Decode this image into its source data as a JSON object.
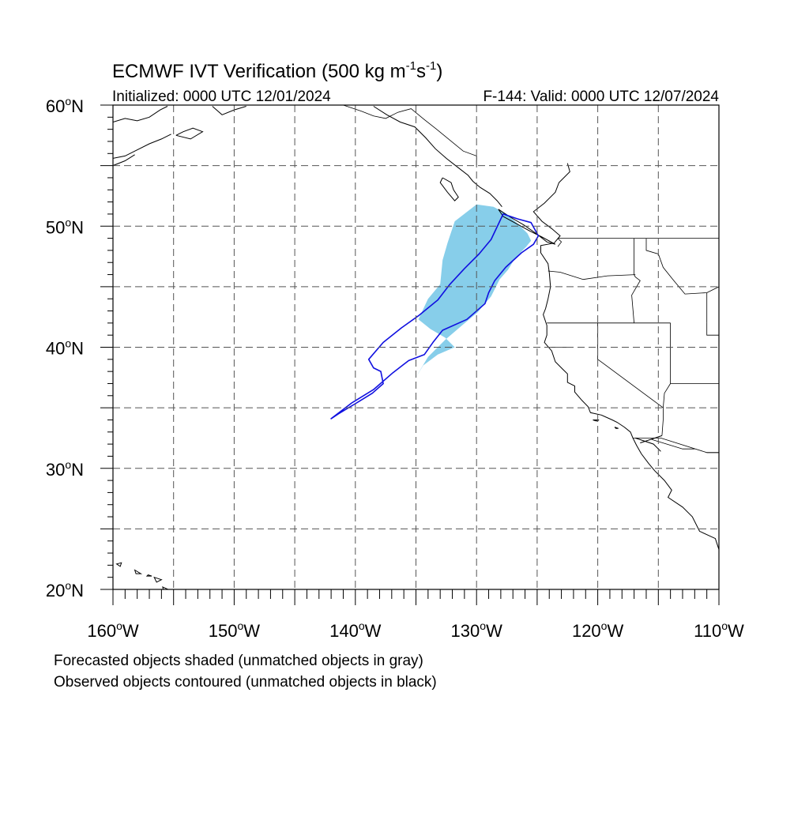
{
  "title": {
    "main": "ECMWF IVT Verification (500 kg m",
    "exp1": "-1",
    "mid": "s",
    "exp2": "-1",
    "close": ")"
  },
  "subtitle_left": "Initialized: 0000 UTC 12/01/2024",
  "subtitle_right": "F-144: Valid: 0000 UTC 12/07/2024",
  "lat_labels": [
    "60",
    "50",
    "40",
    "30",
    "20"
  ],
  "lon_labels": [
    "160",
    "150",
    "140",
    "130",
    "120",
    "110"
  ],
  "lat_hemisphere": "N",
  "lon_hemisphere": "W",
  "degree_symbol": "o",
  "footnote_1": "Forecasted objects shaded (unmatched objects in gray)",
  "footnote_2": "Observed objects contoured (unmatched objects in black)",
  "colors": {
    "forecast_fill": "#87ceea",
    "observed_contour": "#1010e0",
    "coastline": "#000000",
    "grid": "#555555"
  },
  "map_extent": {
    "lon_min": -160,
    "lon_max": -110,
    "lat_min": 20,
    "lat_max": 60
  },
  "gridlines": {
    "lon": [
      -155,
      -150,
      -145,
      -140,
      -135,
      -130,
      -125,
      -120,
      -115
    ],
    "lat": [
      25,
      30,
      35,
      40,
      45,
      50,
      55
    ],
    "style": "dashed"
  },
  "forecast_object": [
    [
      -130.0,
      51.8
    ],
    [
      -128.6,
      51.6
    ],
    [
      -127.5,
      51.0
    ],
    [
      -126.6,
      50.2
    ],
    [
      -125.8,
      49.4
    ],
    [
      -125.5,
      48.8
    ],
    [
      -125.9,
      48.3
    ],
    [
      -126.8,
      47.4
    ],
    [
      -127.4,
      46.4
    ],
    [
      -128.1,
      45.6
    ],
    [
      -128.8,
      44.2
    ],
    [
      -129.9,
      42.9
    ],
    [
      -131.2,
      41.8
    ],
    [
      -132.6,
      40.6
    ],
    [
      -134.0,
      39.2
    ],
    [
      -135.2,
      37.2
    ],
    [
      -134.4,
      38.5
    ],
    [
      -133.2,
      39.4
    ],
    [
      -131.8,
      40.0
    ],
    [
      -132.6,
      40.8
    ],
    [
      -133.8,
      41.5
    ],
    [
      -134.8,
      42.3
    ],
    [
      -134.0,
      44.0
    ],
    [
      -133.0,
      45.2
    ],
    [
      -132.8,
      47.2
    ],
    [
      -132.4,
      48.6
    ],
    [
      -131.8,
      50.4
    ]
  ],
  "observed_object": [
    [
      -127.8,
      51.0
    ],
    [
      -126.6,
      50.6
    ],
    [
      -125.5,
      50.3
    ],
    [
      -124.9,
      49.2
    ],
    [
      -125.3,
      48.5
    ],
    [
      -126.3,
      47.8
    ],
    [
      -127.6,
      46.6
    ],
    [
      -128.5,
      45.5
    ],
    [
      -129.0,
      44.5
    ],
    [
      -129.3,
      43.6
    ],
    [
      -130.8,
      42.3
    ],
    [
      -132.8,
      41.4
    ],
    [
      -133.6,
      40.4
    ],
    [
      -134.3,
      39.4
    ],
    [
      -135.6,
      38.9
    ],
    [
      -136.9,
      37.9
    ],
    [
      -138.5,
      36.5
    ],
    [
      -140.3,
      35.4
    ],
    [
      -142.0,
      34.1
    ],
    [
      -141.4,
      34.5
    ],
    [
      -139.9,
      35.4
    ],
    [
      -138.6,
      36.2
    ],
    [
      -137.7,
      37.0
    ],
    [
      -137.9,
      38.0
    ],
    [
      -138.5,
      38.3
    ],
    [
      -138.9,
      39.0
    ],
    [
      -137.7,
      40.4
    ],
    [
      -136.2,
      41.6
    ],
    [
      -134.8,
      42.6
    ],
    [
      -133.2,
      43.9
    ],
    [
      -132.2,
      45.2
    ],
    [
      -131.0,
      46.5
    ],
    [
      -129.8,
      47.7
    ],
    [
      -128.8,
      48.9
    ]
  ],
  "coastlines": [
    [
      [
        -122.5,
        55.2
      ],
      [
        -122.3,
        54.5
      ],
      [
        -123.2,
        53.6
      ],
      [
        -123.5,
        52.8
      ],
      [
        -124.4,
        51.9
      ],
      [
        -125.3,
        51.2
      ],
      [
        -124.6,
        50.4
      ],
      [
        -123.8,
        49.8
      ],
      [
        -123.1,
        49.2
      ],
      [
        -123.6,
        48.6
      ],
      [
        -124.7,
        48.4
      ],
      [
        -124.7,
        47.8
      ],
      [
        -124.1,
        46.9
      ],
      [
        -124.0,
        46.2
      ],
      [
        -123.9,
        45.0
      ],
      [
        -124.1,
        44.0
      ],
      [
        -124.3,
        43.2
      ],
      [
        -124.5,
        42.7
      ],
      [
        -124.2,
        41.8
      ],
      [
        -124.2,
        41.0
      ],
      [
        -124.4,
        40.4
      ],
      [
        -123.8,
        39.7
      ],
      [
        -123.5,
        38.8
      ],
      [
        -122.9,
        38.2
      ],
      [
        -122.5,
        37.8
      ],
      [
        -122.5,
        37.1
      ],
      [
        -121.9,
        36.8
      ],
      [
        -121.9,
        36.3
      ],
      [
        -121.3,
        35.6
      ],
      [
        -120.8,
        35.1
      ],
      [
        -120.6,
        34.6
      ],
      [
        -119.7,
        34.4
      ],
      [
        -118.8,
        34.0
      ],
      [
        -118.4,
        33.8
      ],
      [
        -117.8,
        33.4
      ],
      [
        -117.3,
        33.0
      ],
      [
        -117.1,
        32.5
      ],
      [
        -116.8,
        31.9
      ],
      [
        -116.4,
        31.2
      ],
      [
        -115.8,
        30.4
      ],
      [
        -115.3,
        29.8
      ],
      [
        -114.5,
        29.0
      ],
      [
        -113.9,
        28.2
      ],
      [
        -114.2,
        27.6
      ],
      [
        -113.0,
        26.8
      ],
      [
        -112.2,
        26.0
      ],
      [
        -111.6,
        24.8
      ],
      [
        -110.3,
        24.2
      ],
      [
        -109.9,
        23.0
      ]
    ],
    [
      [
        -128.2,
        51.4
      ],
      [
        -127.3,
        50.8
      ],
      [
        -126.1,
        50.1
      ],
      [
        -125.1,
        49.4
      ],
      [
        -124.2,
        48.7
      ],
      [
        -123.5,
        48.5
      ],
      [
        -124.6,
        49.1
      ],
      [
        -125.6,
        49.6
      ],
      [
        -126.7,
        50.2
      ],
      [
        -127.8,
        50.8
      ],
      [
        -128.2,
        51.4
      ]
    ],
    [
      [
        -138.5,
        59.9
      ],
      [
        -137.4,
        59.2
      ],
      [
        -136.3,
        58.6
      ],
      [
        -135.1,
        58.2
      ],
      [
        -134.2,
        57.3
      ],
      [
        -133.4,
        56.4
      ],
      [
        -132.5,
        55.6
      ],
      [
        -131.6,
        54.9
      ],
      [
        -130.7,
        54.2
      ],
      [
        -130.3,
        53.7
      ],
      [
        -129.7,
        53.2
      ],
      [
        -128.9,
        52.7
      ],
      [
        -128.3,
        52.1
      ],
      [
        -127.9,
        51.6
      ]
    ],
    [
      [
        -132.8,
        54.0
      ],
      [
        -132.1,
        53.6
      ],
      [
        -131.9,
        53.0
      ],
      [
        -131.5,
        52.4
      ],
      [
        -131.8,
        52.1
      ],
      [
        -132.4,
        52.8
      ],
      [
        -133.0,
        53.6
      ],
      [
        -132.8,
        54.0
      ]
    ],
    [
      [
        -160.0,
        58.6
      ],
      [
        -159.0,
        58.9
      ],
      [
        -158.0,
        58.7
      ],
      [
        -157.0,
        59.0
      ],
      [
        -156.1,
        59.6
      ],
      [
        -155.5,
        59.9
      ]
    ],
    [
      [
        -160.0,
        55.6
      ],
      [
        -159.0,
        55.8
      ],
      [
        -158.0,
        56.3
      ],
      [
        -157.0,
        56.8
      ],
      [
        -156.0,
        57.2
      ],
      [
        -155.2,
        57.6
      ]
    ],
    [
      [
        -160.0,
        55.0
      ],
      [
        -159.0,
        55.4
      ],
      [
        -158.2,
        55.9
      ]
    ],
    [
      [
        -154.8,
        57.5
      ],
      [
        -153.6,
        57.2
      ],
      [
        -152.6,
        57.8
      ],
      [
        -153.4,
        58.1
      ],
      [
        -154.2,
        57.8
      ],
      [
        -154.8,
        57.5
      ]
    ],
    [
      [
        -151.8,
        59.9
      ],
      [
        -151.0,
        59.2
      ],
      [
        -150.0,
        59.6
      ],
      [
        -149.0,
        59.9
      ]
    ],
    [
      [
        -116.9,
        32.5
      ],
      [
        -115.4,
        32.0
      ],
      [
        -114.8,
        31.4
      ]
    ],
    [
      [
        -116.5,
        32.1
      ],
      [
        -115.6,
        32.4
      ],
      [
        -114.7,
        32.7
      ]
    ]
  ],
  "islands": [
    [
      [
        -159.7,
        22.1
      ],
      [
        -159.3,
        22.2
      ],
      [
        -159.4,
        21.9
      ],
      [
        -159.7,
        22.1
      ]
    ],
    [
      [
        -158.2,
        21.6
      ],
      [
        -157.7,
        21.3
      ],
      [
        -158.1,
        21.3
      ],
      [
        -158.2,
        21.6
      ]
    ],
    [
      [
        -157.1,
        21.2
      ],
      [
        -156.8,
        21.1
      ],
      [
        -157.2,
        21.1
      ],
      [
        -157.1,
        21.2
      ]
    ],
    [
      [
        -156.6,
        21.0
      ],
      [
        -156.0,
        20.8
      ],
      [
        -156.4,
        20.6
      ],
      [
        -156.6,
        21.0
      ]
    ],
    [
      [
        -155.9,
        20.2
      ],
      [
        -155.0,
        19.8
      ],
      [
        -155.6,
        19.0
      ],
      [
        -155.9,
        20.2
      ]
    ],
    [
      [
        -120.4,
        34.0
      ],
      [
        -119.9,
        34.0
      ],
      [
        -120.1,
        33.9
      ],
      [
        -120.4,
        34.0
      ]
    ],
    [
      [
        -118.6,
        33.4
      ],
      [
        -118.3,
        33.3
      ],
      [
        -118.5,
        33.3
      ],
      [
        -118.6,
        33.4
      ]
    ]
  ],
  "borders": [
    [
      [
        -123.3,
        49.0
      ],
      [
        -110.0,
        49.0
      ]
    ],
    [
      [
        -141.0,
        60.0
      ],
      [
        -139.5,
        59.5
      ],
      [
        -138.5,
        59.1
      ],
      [
        -137.5,
        58.9
      ],
      [
        -136.5,
        59.4
      ],
      [
        -135.4,
        59.7
      ],
      [
        -134.3,
        58.8
      ],
      [
        -133.3,
        58.0
      ],
      [
        -132.2,
        57.1
      ],
      [
        -131.1,
        56.2
      ],
      [
        -130.0,
        55.8
      ],
      [
        -130.0,
        55.0
      ]
    ],
    [
      [
        -117.1,
        32.5
      ],
      [
        -114.8,
        32.5
      ],
      [
        -111.0,
        31.3
      ],
      [
        -110.0,
        31.3
      ]
    ],
    [
      [
        -124.2,
        42.0
      ],
      [
        -114.0,
        42.0
      ]
    ],
    [
      [
        -120.0,
        42.0
      ],
      [
        -120.0,
        39.0
      ],
      [
        -114.6,
        35.0
      ],
      [
        -114.6,
        34.0
      ],
      [
        -114.7,
        32.7
      ]
    ],
    [
      [
        -117.0,
        49.0
      ],
      [
        -117.0,
        46.0
      ],
      [
        -116.9,
        45.8
      ],
      [
        -116.5,
        45.5
      ],
      [
        -117.2,
        44.3
      ],
      [
        -117.0,
        42.0
      ]
    ],
    [
      [
        -124.1,
        46.3
      ],
      [
        -123.1,
        46.2
      ],
      [
        -121.2,
        45.6
      ],
      [
        -119.2,
        45.9
      ],
      [
        -116.9,
        46.0
      ]
    ],
    [
      [
        -114.0,
        42.0
      ],
      [
        -114.0,
        37.0
      ]
    ],
    [
      [
        -111.0,
        42.0
      ],
      [
        -111.0,
        41.0
      ],
      [
        -110.0,
        41.0
      ]
    ],
    [
      [
        -116.0,
        49.0
      ],
      [
        -116.0,
        48.0
      ],
      [
        -115.0,
        47.7
      ],
      [
        -114.6,
        46.6
      ],
      [
        -113.8,
        45.6
      ],
      [
        -112.8,
        44.4
      ],
      [
        -111.0,
        44.5
      ],
      [
        -110.0,
        45.0
      ]
    ],
    [
      [
        -111.0,
        44.5
      ],
      [
        -111.0,
        42.0
      ]
    ],
    [
      [
        -114.0,
        37.0
      ],
      [
        -110.0,
        37.0
      ]
    ],
    [
      [
        -114.0,
        37.0
      ],
      [
        -114.5,
        36.2
      ],
      [
        -114.6,
        35.0
      ]
    ],
    [
      [
        -110.0,
        31.3
      ],
      [
        -111.0,
        31.3
      ]
    ],
    [
      [
        -123.3,
        48.3
      ],
      [
        -123.0,
        48.7
      ],
      [
        -123.3,
        49.0
      ]
    ],
    [
      [
        -124.0,
        40.0
      ],
      [
        -122.0,
        40.0
      ]
    ],
    [
      [
        -115.6,
        32.4
      ],
      [
        -113.0,
        31.6
      ],
      [
        -112.0,
        31.6
      ]
    ]
  ]
}
